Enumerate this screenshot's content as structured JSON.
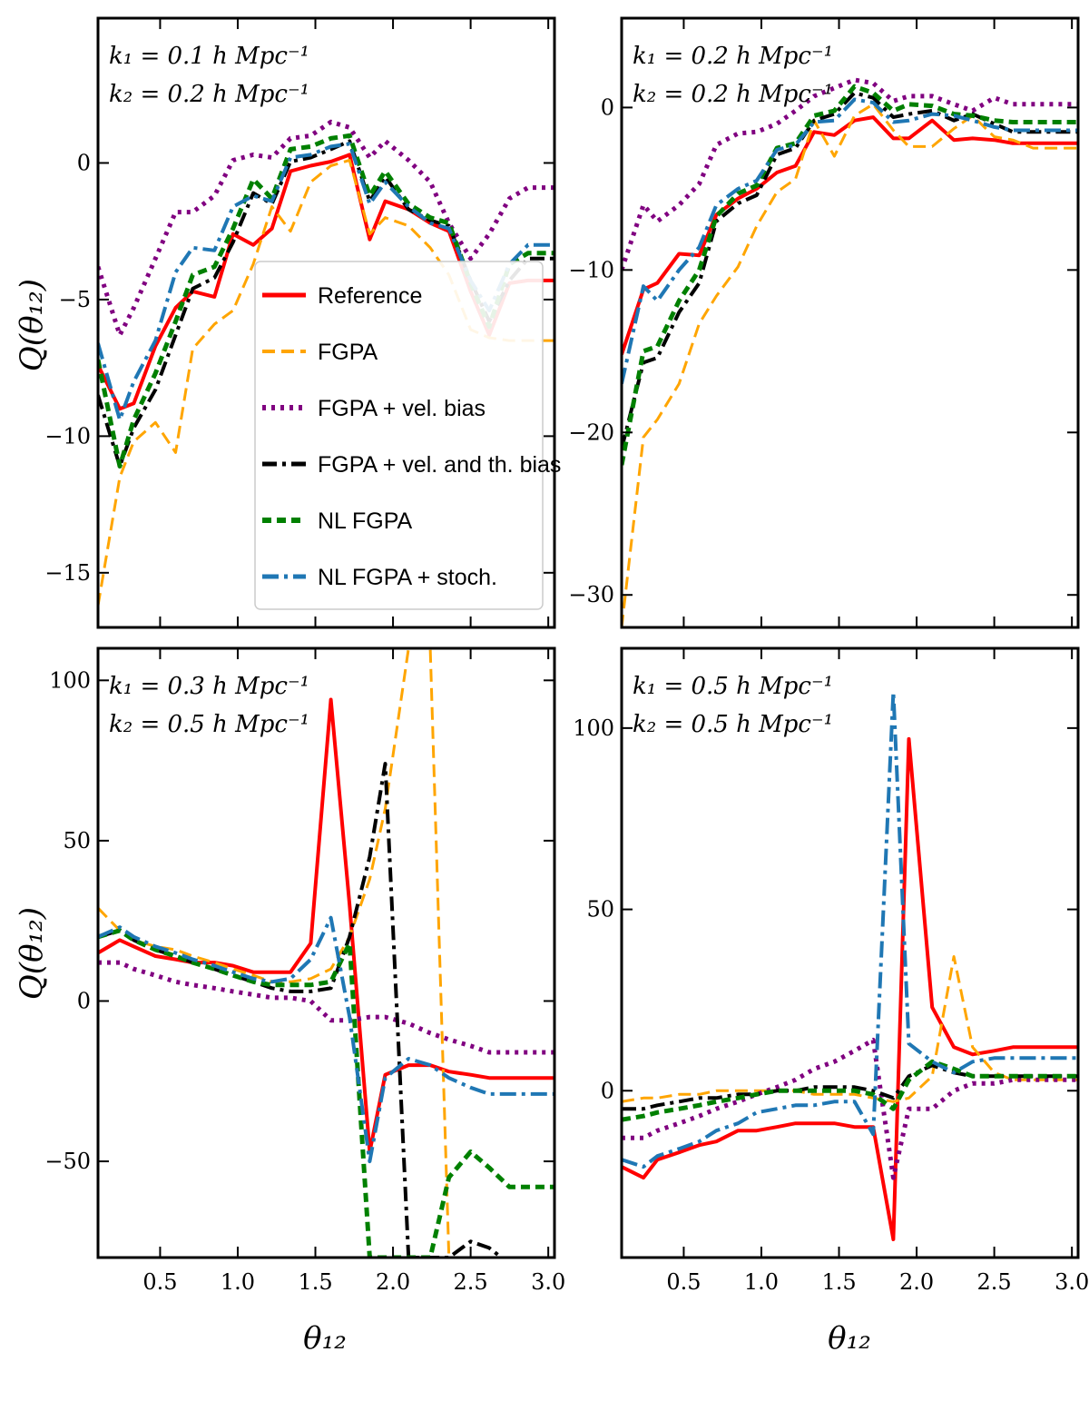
{
  "figure": {
    "xlabel": "θ₁₂",
    "ylabel": "Q(θ₁₂)"
  },
  "legend": {
    "entries": [
      {
        "key": "ref",
        "label": "Reference"
      },
      {
        "key": "fgpa",
        "label": "FGPA"
      },
      {
        "key": "vel",
        "label": "FGPA + vel. bias"
      },
      {
        "key": "velth",
        "label": "FGPA + vel. and th. bias"
      },
      {
        "key": "nl",
        "label": "NL FGPA"
      },
      {
        "key": "stoch",
        "label": "NL FGPA + stoch."
      }
    ]
  },
  "styles": {
    "ref": {
      "color": "#ff0000",
      "dash": "",
      "width": 4
    },
    "fgpa": {
      "color": "#ffa500",
      "dash": "14 7",
      "width": 3
    },
    "vel": {
      "color": "#800080",
      "dash": "4 6",
      "width": 5
    },
    "velth": {
      "color": "#000000",
      "dash": "16 6 4 6",
      "width": 4
    },
    "nl": {
      "color": "#008000",
      "dash": "10 6",
      "width": 5
    },
    "stoch": {
      "color": "#1f77b4",
      "dash": "18 6 4 6",
      "width": 4
    }
  },
  "chart_data": [
    {
      "type": "line",
      "annotation": [
        "k₁ = 0.1 h Mpc⁻¹",
        "k₂ = 0.2 h Mpc⁻¹"
      ],
      "xlim": [
        0.1,
        3.04
      ],
      "ylim": [
        -17,
        5.3
      ],
      "xticks": [
        0.5,
        1.0,
        1.5,
        2.0,
        2.5,
        3.0
      ],
      "xtick_labels": [
        "0.5",
        "1.0",
        "1.5",
        "2.0",
        "2.5",
        "3.0"
      ],
      "yticks": [
        -15,
        -10,
        -5,
        0
      ],
      "ytick_labels": [
        "−15",
        "−10",
        "−5",
        "0"
      ],
      "x": [
        0.1,
        0.24,
        0.33,
        0.47,
        0.6,
        0.71,
        0.85,
        0.97,
        1.1,
        1.22,
        1.34,
        1.47,
        1.6,
        1.72,
        1.85,
        1.95,
        2.1,
        2.24,
        2.36,
        2.5,
        2.62,
        2.75,
        2.87,
        2.98,
        3.04
      ],
      "series": [
        {
          "key": "ref",
          "values": [
            -7.4,
            -9.0,
            -8.8,
            -6.7,
            -5.3,
            -4.7,
            -4.9,
            -2.6,
            -3.0,
            -2.4,
            -0.3,
            -0.1,
            0.05,
            0.3,
            -2.8,
            -1.4,
            -1.7,
            -2.2,
            -2.5,
            -4.7,
            -6.3,
            -4.4,
            -4.3,
            -4.3,
            -4.3
          ]
        },
        {
          "key": "fgpa",
          "values": [
            -16.2,
            -11.5,
            -10.2,
            -9.5,
            -10.6,
            -6.8,
            -5.9,
            -5.4,
            -3.7,
            -1.6,
            -2.5,
            -0.7,
            -0.1,
            0.1,
            -2.6,
            -2.0,
            -2.3,
            -3.1,
            -4.1,
            -6.1,
            -6.4,
            -6.5,
            -6.5,
            -6.5,
            -6.5
          ]
        },
        {
          "key": "vel",
          "values": [
            -3.8,
            -6.3,
            -5.3,
            -3.5,
            -1.8,
            -1.8,
            -1.2,
            0.1,
            0.3,
            0.2,
            0.9,
            1.0,
            1.5,
            1.3,
            0.2,
            0.8,
            0.1,
            -0.7,
            -2.2,
            -3.5,
            -2.6,
            -1.3,
            -0.9,
            -0.9,
            -0.9
          ]
        },
        {
          "key": "velth",
          "values": [
            -8.5,
            -11.1,
            -9.7,
            -8.3,
            -6.3,
            -4.6,
            -4.2,
            -2.9,
            -1.1,
            -1.5,
            0.05,
            0.2,
            0.5,
            0.8,
            -1.4,
            -0.5,
            -1.7,
            -2.1,
            -2.3,
            -4.3,
            -5.8,
            -4.3,
            -3.5,
            -3.5,
            -3.5
          ]
        },
        {
          "key": "nl",
          "values": [
            -7.2,
            -11.1,
            -9.4,
            -7.7,
            -5.8,
            -4.1,
            -3.8,
            -2.4,
            -0.6,
            -1.3,
            0.5,
            0.6,
            0.9,
            1.0,
            -1.2,
            -0.3,
            -1.5,
            -2.0,
            -2.2,
            -4.4,
            -6.0,
            -3.7,
            -3.3,
            -3.3,
            -3.3
          ]
        },
        {
          "key": "stoch",
          "values": [
            -6.6,
            -9.4,
            -8.0,
            -6.5,
            -4.0,
            -3.1,
            -3.2,
            -1.6,
            -1.2,
            -1.4,
            0.2,
            0.3,
            0.6,
            0.7,
            -1.5,
            -0.7,
            -1.6,
            -2.2,
            -2.4,
            -4.3,
            -5.4,
            -3.7,
            -3.0,
            -3.0,
            -3.0
          ]
        }
      ]
    },
    {
      "type": "line",
      "annotation": [
        "k₁ = 0.2 h Mpc⁻¹",
        "k₂ = 0.2 h Mpc⁻¹"
      ],
      "xlim": [
        0.1,
        3.04
      ],
      "ylim": [
        -32,
        5.5
      ],
      "xticks": [
        0.5,
        1.0,
        1.5,
        2.0,
        2.5,
        3.0
      ],
      "xtick_labels": [
        "0.5",
        "1.0",
        "1.5",
        "2.0",
        "2.5",
        "3.0"
      ],
      "yticks": [
        -30,
        -20,
        -10,
        0
      ],
      "ytick_labels": [
        "−30",
        "−20",
        "−10",
        "0"
      ],
      "x": [
        0.1,
        0.24,
        0.33,
        0.47,
        0.6,
        0.71,
        0.85,
        0.97,
        1.1,
        1.22,
        1.34,
        1.47,
        1.6,
        1.72,
        1.85,
        1.95,
        2.1,
        2.24,
        2.36,
        2.5,
        2.62,
        2.75,
        2.87,
        2.98,
        3.04
      ],
      "series": [
        {
          "key": "ref",
          "values": [
            -15.2,
            -11.2,
            -10.8,
            -9.0,
            -9.1,
            -6.6,
            -5.6,
            -5.0,
            -4.0,
            -3.6,
            -1.5,
            -1.7,
            -0.8,
            -0.6,
            -1.9,
            -1.9,
            -0.8,
            -2.0,
            -1.9,
            -2.0,
            -2.2,
            -2.2,
            -2.2,
            -2.2,
            -2.2
          ]
        },
        {
          "key": "fgpa",
          "values": [
            -32.0,
            -20.3,
            -19.2,
            -17.0,
            -13.3,
            -11.6,
            -9.8,
            -7.3,
            -5.2,
            -4.4,
            -0.8,
            -3.0,
            -0.5,
            0.2,
            -1.4,
            -2.4,
            -2.4,
            -1.3,
            -0.5,
            -1.8,
            -2.0,
            -2.5,
            -2.5,
            -2.5,
            -2.5
          ]
        },
        {
          "key": "vel",
          "values": [
            -10.0,
            -6.0,
            -7.0,
            -6.0,
            -4.7,
            -2.3,
            -1.6,
            -1.5,
            -1.0,
            -0.2,
            0.7,
            1.2,
            1.7,
            1.5,
            0.4,
            0.7,
            0.7,
            0.2,
            -0.2,
            0.6,
            0.2,
            0.2,
            0.2,
            0.2,
            0.2
          ]
        },
        {
          "key": "velth",
          "values": [
            -21.0,
            -15.7,
            -15.4,
            -12.6,
            -10.8,
            -7.0,
            -5.9,
            -5.4,
            -2.9,
            -2.5,
            -0.8,
            -0.4,
            0.9,
            0.6,
            -0.6,
            -0.4,
            -0.2,
            -0.8,
            -0.4,
            -1.0,
            -1.5,
            -1.5,
            -1.5,
            -1.5,
            -1.5
          ]
        },
        {
          "key": "nl",
          "values": [
            -22.0,
            -15.0,
            -14.7,
            -11.9,
            -10.0,
            -6.7,
            -5.3,
            -4.8,
            -2.5,
            -2.2,
            -0.5,
            -0.2,
            1.3,
            0.9,
            -0.2,
            0.2,
            0.1,
            -0.4,
            -0.5,
            -0.8,
            -0.9,
            -0.9,
            -0.9,
            -0.9,
            -0.9
          ]
        },
        {
          "key": "stoch",
          "values": [
            -17.0,
            -11.0,
            -11.9,
            -10.0,
            -8.6,
            -6.0,
            -5.0,
            -4.5,
            -2.6,
            -2.3,
            -0.9,
            -0.8,
            0.5,
            0.3,
            -0.9,
            -0.8,
            -0.4,
            -0.5,
            -0.8,
            -1.2,
            -1.4,
            -1.4,
            -1.4,
            -1.4,
            -1.4
          ]
        }
      ]
    },
    {
      "type": "line",
      "annotation": [
        "k₁ = 0.3 h Mpc⁻¹",
        "k₂ = 0.5 h Mpc⁻¹"
      ],
      "xlim": [
        0.1,
        3.04
      ],
      "ylim": [
        -80,
        110
      ],
      "xticks": [
        0.5,
        1.0,
        1.5,
        2.0,
        2.5,
        3.0
      ],
      "xtick_labels": [
        "0.5",
        "1.0",
        "1.5",
        "2.0",
        "2.5",
        "3.0"
      ],
      "yticks": [
        -50,
        0,
        50,
        100
      ],
      "ytick_labels": [
        "−50",
        "0",
        "50",
        "100"
      ],
      "x": [
        0.1,
        0.24,
        0.33,
        0.47,
        0.6,
        0.71,
        0.85,
        0.97,
        1.1,
        1.22,
        1.34,
        1.47,
        1.6,
        1.72,
        1.85,
        1.95,
        2.1,
        2.24,
        2.36,
        2.5,
        2.62,
        2.75,
        2.87,
        2.98,
        3.04
      ],
      "series": [
        {
          "key": "ref",
          "values": [
            15,
            19,
            17,
            14,
            13,
            12,
            12,
            11,
            9,
            9,
            9,
            18,
            94,
            30,
            -47,
            -23,
            -20,
            -20,
            -22,
            -23,
            -24,
            -24,
            -24,
            -24,
            -24
          ]
        },
        {
          "key": "fgpa",
          "values": [
            29,
            22,
            19,
            17,
            16,
            14,
            12,
            10,
            8,
            6,
            6,
            7,
            10,
            20,
            38,
            60,
            110,
            110,
            -80,
            -80,
            -80,
            -80,
            -80,
            -80,
            -80
          ]
        },
        {
          "key": "vel",
          "values": [
            12,
            12,
            10,
            8,
            6,
            5,
            4,
            3,
            2,
            1,
            1,
            0,
            -6,
            -6,
            -5,
            -5,
            -7,
            -10,
            -12,
            -14,
            -16,
            -16,
            -16,
            -16,
            -16
          ]
        },
        {
          "key": "velth",
          "values": [
            20,
            22,
            19,
            16,
            14,
            12,
            10,
            8,
            6,
            4,
            3,
            3,
            4,
            20,
            45,
            74,
            -80,
            -80,
            -80,
            -75,
            -77,
            -82,
            -82,
            -82,
            -82
          ]
        },
        {
          "key": "nl",
          "values": [
            20,
            22,
            19,
            16,
            14,
            12,
            10,
            8,
            6,
            5,
            5,
            5,
            6,
            18,
            -80,
            -80,
            -80,
            -80,
            -55,
            -47,
            -52,
            -58,
            -58,
            -58,
            -58
          ]
        },
        {
          "key": "stoch",
          "values": [
            20,
            23,
            20,
            17,
            15,
            13,
            11,
            9,
            7,
            6,
            7,
            13,
            26,
            -5,
            -50,
            -24,
            -18,
            -20,
            -24,
            -27,
            -29,
            -29,
            -29,
            -29,
            -29
          ]
        }
      ]
    },
    {
      "type": "line",
      "annotation": [
        "k₁ = 0.5 h Mpc⁻¹",
        "k₂ = 0.5 h Mpc⁻¹"
      ],
      "xlim": [
        0.1,
        3.04
      ],
      "ylim": [
        -46,
        122
      ],
      "xticks": [
        0.5,
        1.0,
        1.5,
        2.0,
        2.5,
        3.0
      ],
      "xtick_labels": [
        "0.5",
        "1.0",
        "1.5",
        "2.0",
        "2.5",
        "3.0"
      ],
      "yticks": [
        0,
        50,
        100
      ],
      "ytick_labels": [
        "0",
        "50",
        "100"
      ],
      "x": [
        0.1,
        0.24,
        0.33,
        0.47,
        0.6,
        0.71,
        0.85,
        0.97,
        1.1,
        1.22,
        1.34,
        1.47,
        1.6,
        1.72,
        1.85,
        1.95,
        2.1,
        2.24,
        2.36,
        2.5,
        2.62,
        2.75,
        2.87,
        2.98,
        3.04
      ],
      "series": [
        {
          "key": "ref",
          "values": [
            -21,
            -24,
            -19,
            -17,
            -15,
            -14,
            -11,
            -11,
            -10,
            -9,
            -9,
            -9,
            -10,
            -10,
            -41,
            97,
            23,
            12,
            10,
            11,
            12,
            12,
            12,
            12,
            12
          ]
        },
        {
          "key": "fgpa",
          "values": [
            -3,
            -2,
            -2,
            -1,
            -1,
            0,
            0,
            0,
            0,
            0,
            -1,
            -1,
            -1,
            -2,
            -3,
            -2,
            4,
            37,
            12,
            5,
            3,
            3,
            3,
            3,
            3
          ]
        },
        {
          "key": "vel",
          "values": [
            -13,
            -13,
            -11,
            -9,
            -7,
            -5,
            -3,
            -1,
            1,
            3,
            6,
            8,
            11,
            14,
            -24,
            -5,
            -5,
            0,
            2,
            2,
            3,
            3,
            3,
            3,
            3
          ]
        },
        {
          "key": "velth",
          "values": [
            -5,
            -5,
            -4,
            -3,
            -2,
            -2,
            -1,
            -1,
            0,
            0,
            1,
            1,
            1,
            0,
            -2,
            4,
            7,
            5,
            4,
            4,
            4,
            4,
            4,
            4,
            4
          ]
        },
        {
          "key": "nl",
          "values": [
            -8,
            -7,
            -6,
            -5,
            -4,
            -3,
            -2,
            -1,
            0,
            0,
            0,
            0,
            0,
            -1,
            -5,
            3,
            8,
            6,
            4,
            4,
            4,
            4,
            4,
            4,
            4
          ]
        },
        {
          "key": "stoch",
          "values": [
            -19,
            -21,
            -18,
            -16,
            -14,
            -11,
            -9,
            -6,
            -5,
            -4,
            -4,
            -3,
            -3,
            -12,
            110,
            13,
            8,
            5,
            8,
            9,
            9,
            9,
            9,
            9,
            9
          ]
        }
      ]
    }
  ]
}
